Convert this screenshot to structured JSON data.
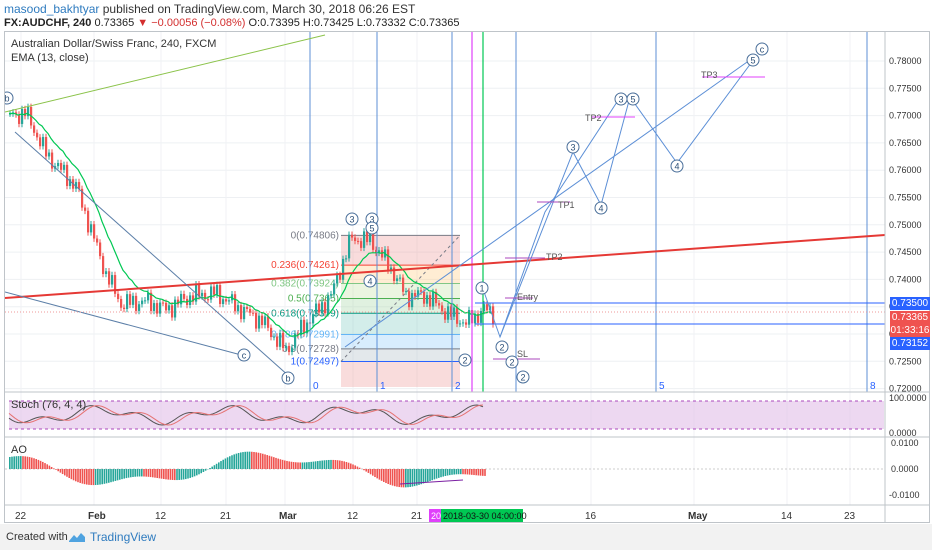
{
  "header": {
    "author": "masood_bakhtyar",
    "published": "published on TradingView.com, March 30, 2018 06:26 EST",
    "symbol_line": "FX:AUDCHF, 240",
    "last": "0.73365",
    "change": "−0.00056 (−0.08%)",
    "ohlc": "O:0.73395 H:0.73425 L:0.73332 C:0.73365"
  },
  "chart": {
    "title": "Australian Dollar/Swiss Franc, 240, FXCM",
    "ema_label": "EMA (13, close)",
    "stoch_label": "Stoch (76, 4, 4)",
    "ao_label": "AO",
    "price_ticks": [
      "0.78000",
      "0.77500",
      "0.77000",
      "0.76500",
      "0.76000",
      "0.75500",
      "0.75000",
      "0.74500",
      "0.74000",
      "0.73500",
      "0.73000",
      "0.72500",
      "0.72000"
    ],
    "stoch_ticks": [
      "100.0000",
      "0.0000"
    ],
    "ao_ticks": [
      "0.0100",
      "0.0000",
      "-0.0100"
    ],
    "date_ticks": [
      "22",
      "Feb",
      "12",
      "21",
      "Mar",
      "12",
      "21",
      "16",
      "May",
      "14",
      "23"
    ],
    "price_tags": [
      {
        "text": "0.73500",
        "color": "#2962ff"
      },
      {
        "text": "0.73365",
        "color": "#ef5350"
      },
      {
        "text": "01:33:16",
        "color": "#ef5350"
      },
      {
        "text": "0.73152",
        "color": "#2962ff"
      }
    ],
    "date_marker": "20",
    "date_badge": "2018-03-30 04:00:00",
    "fib_levels": [
      "0(0.74806)",
      "0.236(0.74261)",
      "0.382(0.73924)",
      "0.5(0.7365)",
      "0.618(0.73379)",
      "0.786(0.72991)",
      "0.9(0.72728)",
      "1(0.72497)"
    ],
    "fib_colors": [
      "#787b86",
      "#f44336",
      "#81c784",
      "#4caf50",
      "#089981",
      "#64b5f6",
      "#787b86",
      "#2962ff"
    ],
    "time_cycle_labels": [
      "0",
      "1",
      "2",
      "5",
      "8"
    ],
    "wave_labels": [
      "3",
      "3",
      "5",
      "4",
      "1",
      "2",
      "2",
      "3",
      "4",
      "5",
      "3",
      "5",
      "4",
      "c",
      "b",
      "c",
      "2",
      "2",
      "2"
    ],
    "trade_labels": [
      "Entry",
      "SL",
      "TP1",
      "TP2",
      "TP3",
      "TP2",
      "TP3"
    ]
  },
  "footer": {
    "created_with": "Created with",
    "brand": "TradingView"
  }
}
